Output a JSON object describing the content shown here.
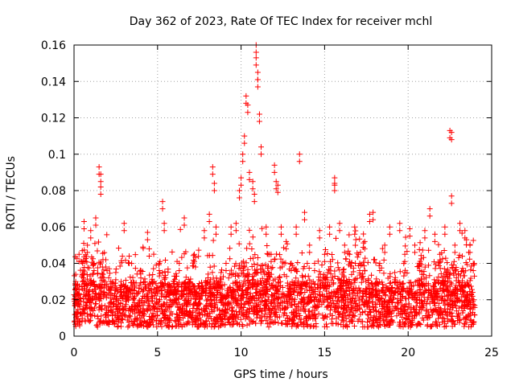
{
  "chart_data": {
    "type": "scatter",
    "title": "Day 362 of 2023, Rate Of TEC Index for receiver mchl",
    "xlabel": "GPS time / hours",
    "ylabel": "ROTI / TECUs",
    "xlim": [
      0,
      25
    ],
    "ylim": [
      0,
      0.16
    ],
    "xticks": [
      0,
      5,
      10,
      15,
      20,
      25
    ],
    "yticks": [
      0,
      0.02,
      0.04,
      0.06,
      0.08,
      0.1,
      0.12,
      0.14,
      0.16
    ],
    "grid": true,
    "marker": "+",
    "series": [
      {
        "name": "ROTI",
        "color": "#ff0000",
        "x": [
          0.1,
          0.3,
          0.5,
          0.6,
          0.8,
          1.0,
          1.2,
          1.3,
          1.5,
          1.6,
          1.6,
          1.7,
          1.9,
          2.2,
          2.5,
          2.8,
          3.0,
          3.3,
          3.6,
          4.0,
          4.4,
          4.5,
          4.8,
          5.1,
          5.3,
          5.4,
          5.7,
          6.0,
          6.3,
          6.6,
          6.9,
          7.2,
          7.5,
          7.8,
          8.1,
          8.3,
          8.4,
          8.5,
          8.8,
          9.1,
          9.4,
          9.7,
          9.9,
          10.0,
          10.1,
          10.2,
          10.3,
          10.4,
          10.5,
          10.7,
          10.8,
          10.9,
          10.9,
          11.0,
          11.0,
          11.1,
          11.2,
          11.5,
          11.8,
          12.0,
          12.1,
          12.2,
          12.4,
          12.7,
          13.0,
          13.3,
          13.5,
          13.8,
          14.1,
          14.4,
          14.7,
          15.0,
          15.3,
          15.6,
          15.6,
          15.9,
          16.2,
          16.5,
          16.8,
          17.1,
          17.4,
          17.7,
          17.9,
          18.3,
          18.6,
          18.9,
          19.2,
          19.5,
          19.8,
          20.1,
          20.4,
          20.7,
          21.0,
          21.3,
          21.6,
          21.9,
          22.2,
          22.5,
          22.6,
          22.6,
          22.8,
          23.1,
          23.4,
          23.7,
          23.9
        ],
        "y": [
          0.034,
          0.045,
          0.03,
          0.063,
          0.05,
          0.058,
          0.04,
          0.065,
          0.093,
          0.089,
          0.082,
          0.038,
          0.042,
          0.03,
          0.035,
          0.028,
          0.062,
          0.044,
          0.025,
          0.036,
          0.057,
          0.048,
          0.03,
          0.04,
          0.074,
          0.062,
          0.028,
          0.033,
          0.04,
          0.065,
          0.03,
          0.045,
          0.026,
          0.058,
          0.067,
          0.093,
          0.084,
          0.06,
          0.035,
          0.04,
          0.06,
          0.062,
          0.08,
          0.087,
          0.1,
          0.11,
          0.132,
          0.127,
          0.09,
          0.085,
          0.078,
          0.16,
          0.153,
          0.141,
          0.145,
          0.122,
          0.104,
          0.06,
          0.045,
          0.094,
          0.085,
          0.083,
          0.06,
          0.052,
          0.04,
          0.06,
          0.1,
          0.068,
          0.05,
          0.04,
          0.058,
          0.045,
          0.06,
          0.087,
          0.084,
          0.062,
          0.05,
          0.045,
          0.06,
          0.04,
          0.052,
          0.067,
          0.068,
          0.04,
          0.05,
          0.06,
          0.035,
          0.062,
          0.045,
          0.059,
          0.05,
          0.04,
          0.058,
          0.07,
          0.056,
          0.045,
          0.06,
          0.113,
          0.112,
          0.077,
          0.05,
          0.062,
          0.058,
          0.05,
          0.04
        ]
      }
    ],
    "baseline_band": {
      "description_values_only": true,
      "typical_min": 0.005,
      "typical_max": 0.03
    }
  }
}
